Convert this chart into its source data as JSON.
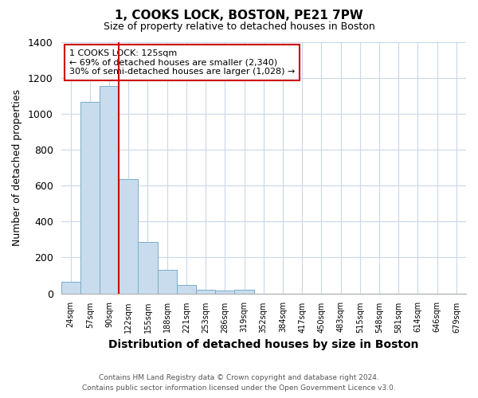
{
  "title": "1, COOKS LOCK, BOSTON, PE21 7PW",
  "subtitle": "Size of property relative to detached houses in Boston",
  "xlabel": "Distribution of detached houses by size in Boston",
  "ylabel": "Number of detached properties",
  "bar_values": [
    65,
    1065,
    1155,
    635,
    285,
    130,
    48,
    20,
    15,
    20,
    0,
    0,
    0,
    0,
    0,
    0,
    0,
    0,
    0,
    0
  ],
  "categories": [
    "24sqm",
    "57sqm",
    "90sqm",
    "122sqm",
    "155sqm",
    "188sqm",
    "221sqm",
    "253sqm",
    "286sqm",
    "319sqm",
    "352sqm",
    "384sqm",
    "417sqm",
    "450sqm",
    "483sqm",
    "515sqm",
    "548sqm",
    "581sqm",
    "614sqm",
    "646sqm",
    "679sqm"
  ],
  "bar_color": "#c8dced",
  "bar_edge_color": "#7aadc8",
  "vline_color": "#cc0000",
  "annotation_title": "1 COOKS LOCK: 125sqm",
  "annotation_line1": "← 69% of detached houses are smaller (2,340)",
  "annotation_line2": "30% of semi-detached houses are larger (1,028) →",
  "annotation_box_color": "#ffffff",
  "annotation_border_color": "#cc0000",
  "ylim": [
    0,
    1400
  ],
  "yticks": [
    0,
    200,
    400,
    600,
    800,
    1000,
    1200,
    1400
  ],
  "footer_line1": "Contains HM Land Registry data © Crown copyright and database right 2024.",
  "footer_line2": "Contains public sector information licensed under the Open Government Licence v3.0.",
  "background_color": "#ffffff",
  "grid_color": "#c8d8e8"
}
